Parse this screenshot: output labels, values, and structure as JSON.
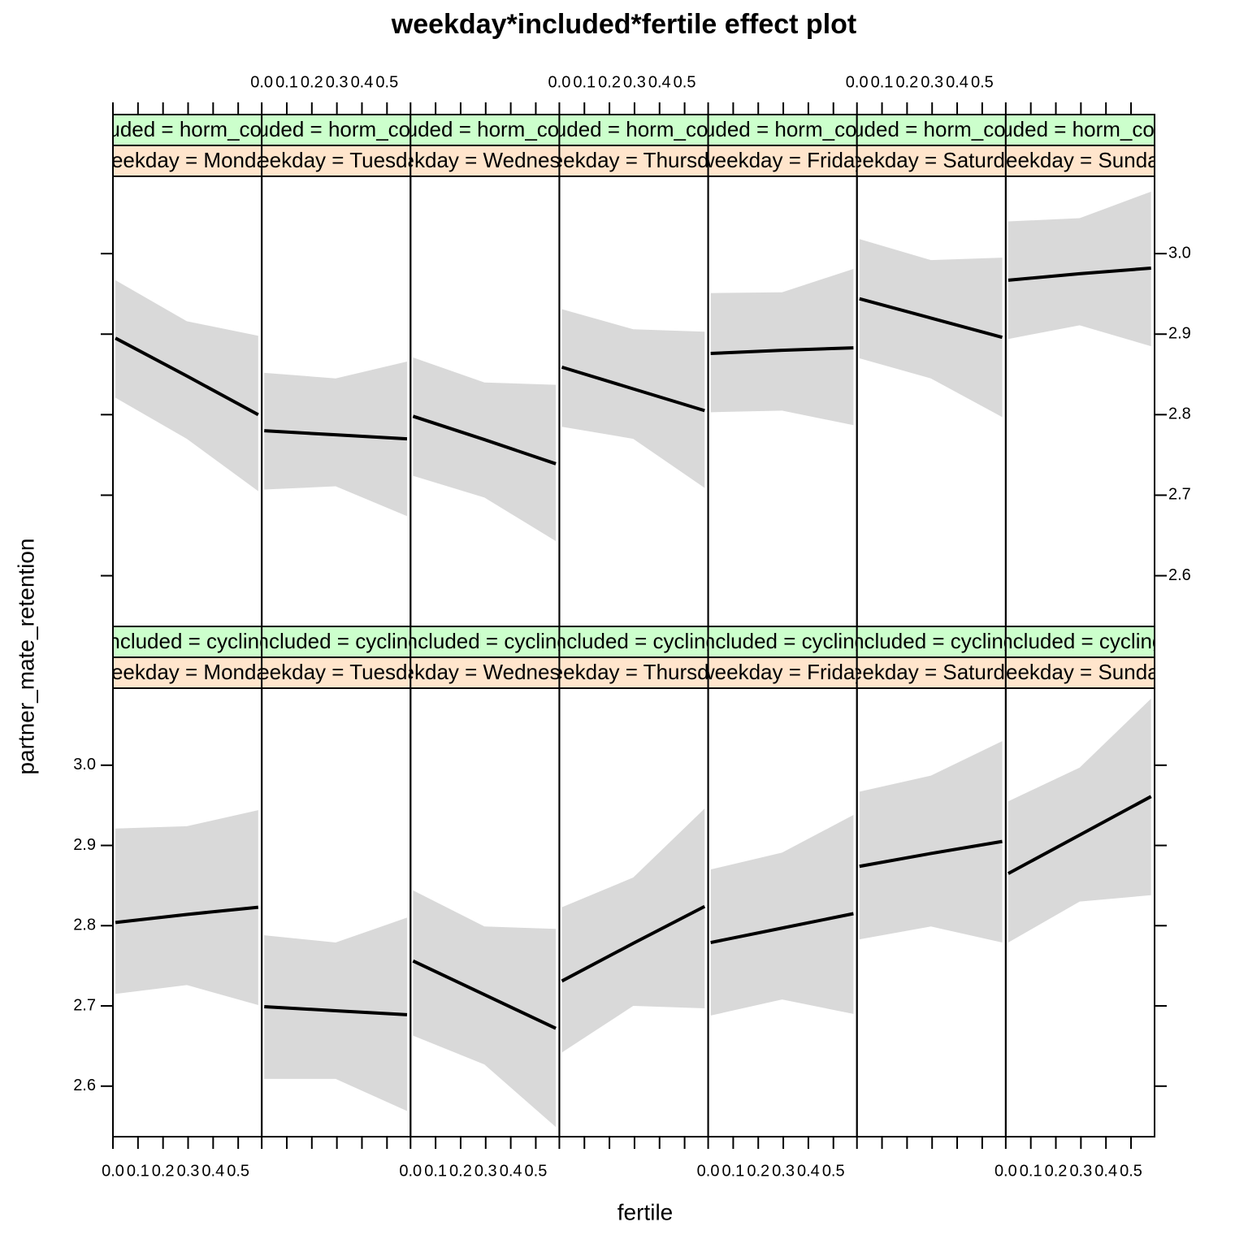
{
  "chart_data": {
    "type": "effect",
    "title": "weekday*included*fertile effect plot",
    "xlabel": "fertile",
    "ylabel": "partner_mate_retention",
    "x": [
      0.01,
      0.295,
      0.58
    ],
    "xlim": [
      0,
      0.594
    ],
    "ylim": [
      2.537,
      3.096
    ],
    "xticks": [
      {
        "value": 0,
        "label": "0.0"
      },
      0.1,
      0.2,
      0.3,
      0.4,
      0.5
    ],
    "yticks": [
      2.6,
      2.7,
      2.8,
      2.9,
      {
        "value": 3,
        "label": "3.0"
      }
    ],
    "line_color": "#000000",
    "band_color": "#d9d9d9",
    "strip_colors": [
      "#ccffcc",
      "#ffe5cc"
    ],
    "panels": [
      {
        "strips": [
          "included = horm_contra",
          "weekday = Monday"
        ],
        "fit": [
          2.895,
          2.848,
          2.8
        ],
        "lower": [
          2.821,
          2.77,
          2.705
        ],
        "upper": [
          2.967,
          2.916,
          2.898
        ]
      },
      {
        "strips": [
          "included = horm_contra",
          "weekday = Tuesday"
        ],
        "fit": [
          2.78,
          2.775,
          2.77
        ],
        "lower": [
          2.707,
          2.711,
          2.674
        ],
        "upper": [
          2.852,
          2.845,
          2.866
        ]
      },
      {
        "strips": [
          "included = horm_contra",
          "weekday = Wednesday"
        ],
        "fit": [
          2.798,
          2.769,
          2.739
        ],
        "lower": [
          2.724,
          2.697,
          2.643
        ],
        "upper": [
          2.871,
          2.84,
          2.837
        ]
      },
      {
        "strips": [
          "included = horm_contra",
          "weekday = Thursday"
        ],
        "fit": [
          2.859,
          2.832,
          2.805
        ],
        "lower": [
          2.785,
          2.77,
          2.709
        ],
        "upper": [
          2.931,
          2.906,
          2.903
        ]
      },
      {
        "strips": [
          "included = horm_contra",
          "weekday = Friday"
        ],
        "fit": [
          2.876,
          2.88,
          2.883
        ],
        "lower": [
          2.803,
          2.805,
          2.787
        ],
        "upper": [
          2.951,
          2.952,
          2.981
        ]
      },
      {
        "strips": [
          "included = horm_contra",
          "weekday = Saturday"
        ],
        "fit": [
          2.944,
          2.92,
          2.896
        ],
        "lower": [
          2.87,
          2.845,
          2.797
        ],
        "upper": [
          3.018,
          2.992,
          2.995
        ]
      },
      {
        "strips": [
          "included = horm_contra",
          "weekday = Sunday"
        ],
        "fit": [
          2.967,
          2.975,
          2.982
        ],
        "lower": [
          2.894,
          2.911,
          2.885
        ],
        "upper": [
          3.04,
          3.044,
          3.077
        ]
      },
      {
        "strips": [
          "included = cycling",
          "weekday = Monday"
        ],
        "fit": [
          2.804,
          2.814,
          2.823
        ],
        "lower": [
          2.715,
          2.726,
          2.701
        ],
        "upper": [
          2.921,
          2.924,
          2.944
        ]
      },
      {
        "strips": [
          "included = cycling",
          "weekday = Tuesday"
        ],
        "fit": [
          2.699,
          2.694,
          2.689
        ],
        "lower": [
          2.609,
          2.609,
          2.569
        ],
        "upper": [
          2.788,
          2.779,
          2.81
        ]
      },
      {
        "strips": [
          "included = cycling",
          "weekday = Wednesday"
        ],
        "fit": [
          2.756,
          2.714,
          2.672
        ],
        "lower": [
          2.663,
          2.627,
          2.549
        ],
        "upper": [
          2.844,
          2.799,
          2.796
        ]
      },
      {
        "strips": [
          "included = cycling",
          "weekday = Thursday"
        ],
        "fit": [
          2.731,
          2.778,
          2.824
        ],
        "lower": [
          2.642,
          2.7,
          2.697
        ],
        "upper": [
          2.823,
          2.86,
          2.946
        ]
      },
      {
        "strips": [
          "included = cycling",
          "weekday = Friday"
        ],
        "fit": [
          2.779,
          2.797,
          2.815
        ],
        "lower": [
          2.688,
          2.708,
          2.69
        ],
        "upper": [
          2.87,
          2.891,
          2.938
        ]
      },
      {
        "strips": [
          "included = cycling",
          "weekday = Saturday"
        ],
        "fit": [
          2.874,
          2.89,
          2.905
        ],
        "lower": [
          2.783,
          2.799,
          2.779
        ],
        "upper": [
          2.967,
          2.987,
          3.03
        ]
      },
      {
        "strips": [
          "included = cycling",
          "weekday = Sunday"
        ],
        "fit": [
          2.865,
          2.913,
          2.961
        ],
        "lower": [
          2.779,
          2.83,
          2.838
        ],
        "upper": [
          2.955,
          2.997,
          3.083
        ]
      }
    ]
  }
}
